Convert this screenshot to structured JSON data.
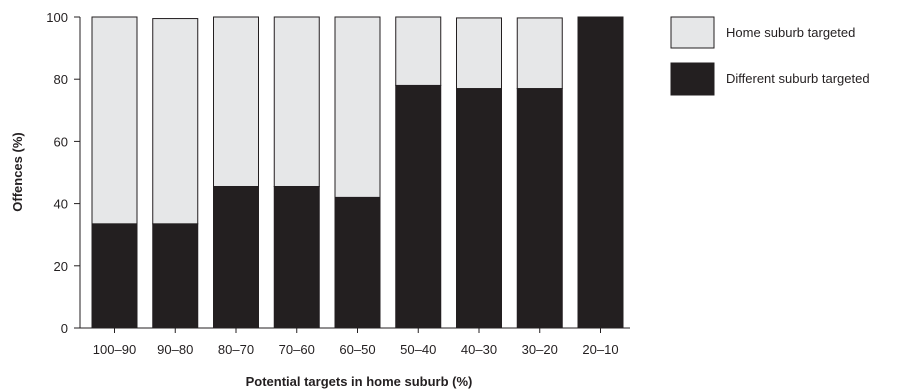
{
  "chart_data": {
    "type": "bar",
    "stacked": true,
    "categories": [
      "100–90",
      "90–80",
      "80–70",
      "70–60",
      "60–50",
      "50–40",
      "40–30",
      "30–20",
      "20–10"
    ],
    "series": [
      {
        "name": "Different suburb targeted",
        "values": [
          33.5,
          33.5,
          45.5,
          45.5,
          42,
          78,
          77,
          77,
          100
        ],
        "color": "#231f20"
      },
      {
        "name": "Home suburb targeted",
        "values": [
          66.5,
          66,
          54.5,
          54.5,
          58,
          22,
          22.7,
          22.7,
          0
        ],
        "color": "#e6e7e8"
      }
    ],
    "xlabel": "Potential targets in home suburb (%)",
    "ylabel": "Offences (%)",
    "ylim": [
      0,
      100
    ],
    "yticks": [
      0,
      20,
      40,
      60,
      80,
      100
    ],
    "grid": false,
    "legend": {
      "placement": "right",
      "entries": [
        {
          "label": "Home suburb targeted",
          "color": "#e6e7e8"
        },
        {
          "label": "Different suburb targeted",
          "color": "#231f20"
        }
      ]
    }
  }
}
